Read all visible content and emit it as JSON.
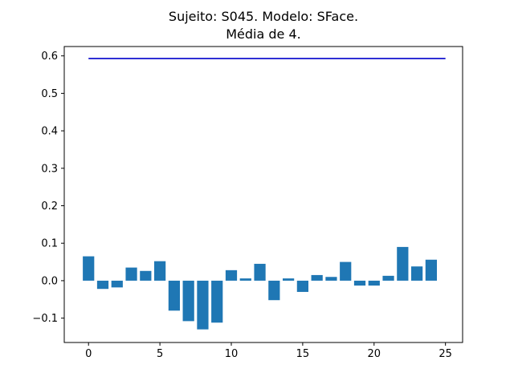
{
  "chart_data": {
    "type": "bar",
    "title_line1": "Sujeito: S045. Modelo: SFace.",
    "title_line2": "Média de 4.",
    "xlabel": "",
    "ylabel": "",
    "x": [
      0,
      1,
      2,
      3,
      4,
      5,
      6,
      7,
      8,
      9,
      10,
      11,
      12,
      13,
      14,
      15,
      16,
      17,
      18,
      19,
      20,
      21,
      22,
      23,
      24
    ],
    "values": [
      0.065,
      -0.022,
      -0.018,
      0.035,
      0.026,
      0.052,
      -0.08,
      -0.108,
      -0.13,
      -0.112,
      0.028,
      0.006,
      0.045,
      -0.052,
      0.006,
      -0.03,
      0.015,
      0.01,
      0.05,
      -0.013,
      -0.013,
      0.013,
      0.09,
      0.038,
      0.056
    ],
    "reference_line": {
      "x": [
        0,
        25
      ],
      "y": 0.593,
      "color": "#0000cc"
    },
    "bar_color": "#1f77b4",
    "xlim": [
      -1.7,
      26.2
    ],
    "ylim": [
      -0.165,
      0.625
    ],
    "xticks": [
      0,
      5,
      10,
      15,
      20,
      25
    ],
    "yticks": [
      -0.1,
      0.0,
      0.1,
      0.2,
      0.3,
      0.4,
      0.5,
      0.6
    ],
    "xtick_labels": [
      "0",
      "5",
      "10",
      "15",
      "20",
      "25"
    ],
    "ytick_labels": [
      "−0.1",
      "0.0",
      "0.1",
      "0.2",
      "0.3",
      "0.4",
      "0.5",
      "0.6"
    ],
    "grid": false,
    "legend": "none"
  }
}
